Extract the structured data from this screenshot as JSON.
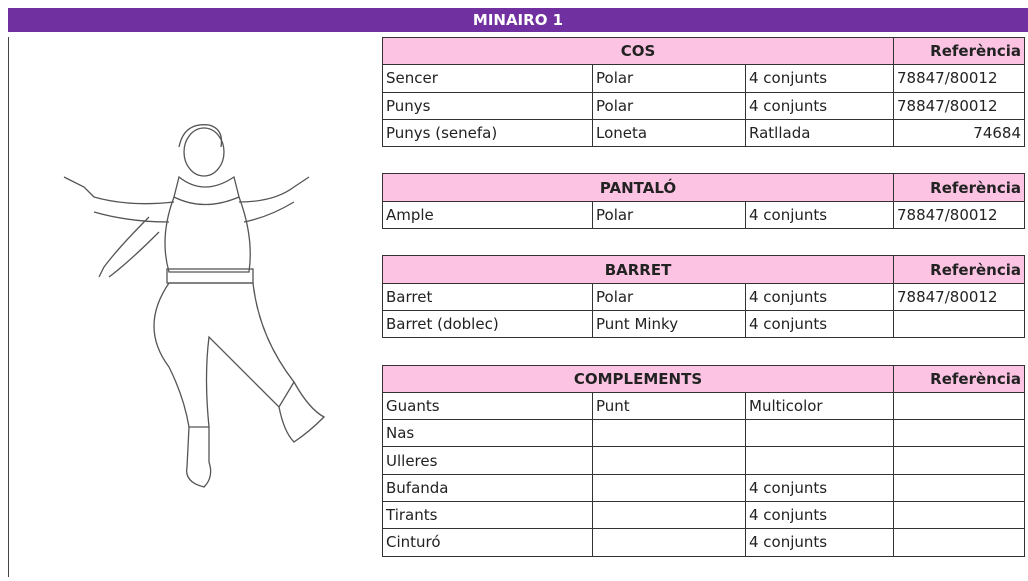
{
  "title": "MINAIRO 1",
  "sections": [
    {
      "header": "COS",
      "reference_header": "Referència",
      "rows": [
        [
          "Sencer",
          "Polar",
          "4 conjunts",
          "78847/80012"
        ],
        [
          "Punys",
          "Polar",
          "4 conjunts",
          "78847/80012"
        ],
        [
          "Punys (senefa)",
          "Loneta",
          "Ratllada",
          74684
        ]
      ]
    },
    {
      "header": "PANTALÓ",
      "reference_header": "Referència",
      "rows": [
        [
          "Ample",
          "Polar",
          "4 conjunts",
          "78847/80012"
        ]
      ]
    },
    {
      "header": "BARRET",
      "reference_header": "Referència",
      "rows": [
        [
          "Barret",
          "Polar",
          "4 conjunts",
          "78847/80012"
        ],
        [
          "Barret (doblec)",
          "Punt Minky",
          "4 conjunts",
          null
        ]
      ]
    },
    {
      "header": "COMPLEMENTS",
      "reference_header": "Referència",
      "rows": [
        [
          "Guants",
          "Punt",
          "Multicolor",
          null
        ],
        [
          "Nas",
          null,
          null,
          null
        ],
        [
          "Ulleres",
          null,
          null,
          null
        ],
        [
          "Bufanda",
          null,
          "4 conjunts",
          null
        ],
        [
          "Tirants",
          null,
          "4 conjunts",
          null
        ],
        [
          "Cinturó",
          null,
          "4 conjunts",
          null
        ]
      ]
    }
  ]
}
